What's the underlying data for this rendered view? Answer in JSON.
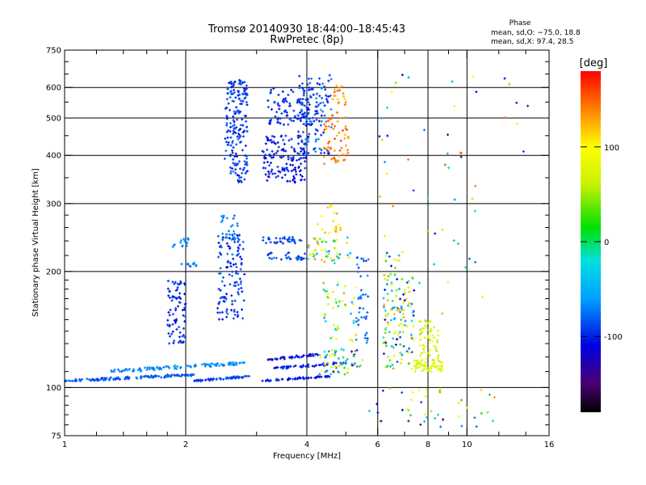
{
  "chart_data": {
    "type": "scatter",
    "title": "Tromsø 20140930 18:44:00–18:45:43",
    "subtitle": "RwPretec (8p)",
    "xlabel": "Frequency [MHz]",
    "ylabel": "Stationary phase Virtual Height [km]",
    "x_scale": "log",
    "y_scale": "log",
    "xlim": [
      1,
      16
    ],
    "ylim": [
      75,
      750
    ],
    "x_ticks": [
      1,
      2,
      4,
      6,
      8,
      10,
      16
    ],
    "x_tick_labels": [
      "1",
      "2",
      "4",
      "6",
      "8",
      "10",
      "16"
    ],
    "x_grid": [
      2,
      4,
      6,
      8,
      10
    ],
    "x_minor_ticks": [
      1.2,
      1.4,
      1.6,
      1.8,
      3,
      5,
      7,
      9,
      12,
      14
    ],
    "y_ticks": [
      75,
      100,
      200,
      300,
      400,
      500,
      600,
      750
    ],
    "y_tick_labels": [
      "75",
      "100",
      "200",
      "300",
      "400",
      "500",
      "600",
      "750"
    ],
    "y_grid": [
      100,
      200,
      300,
      400,
      500,
      600
    ],
    "y_minor_ticks": [
      80,
      85,
      90,
      95,
      110,
      120,
      130,
      140,
      150,
      160,
      170,
      180,
      190,
      220,
      240,
      260,
      280,
      350,
      450,
      550,
      650,
      700
    ],
    "grid": true,
    "legend_position": "top-right",
    "stats_title": "Phase",
    "stats_lines": [
      "mean, sd,O: −75.0, 18.8",
      "mean, sd,X:  97.4, 28.5"
    ],
    "colorbar": {
      "label": "[deg]",
      "range": [
        -180,
        180
      ],
      "tick_values": [
        100,
        0,
        -100
      ],
      "tick_labels": [
        "100",
        "0",
        "-100"
      ],
      "stops": [
        {
          "value": -180,
          "color": "#000000"
        },
        {
          "value": -150,
          "color": "#4a0072"
        },
        {
          "value": -110,
          "color": "#0000e0"
        },
        {
          "value": -60,
          "color": "#00a0ff"
        },
        {
          "value": -20,
          "color": "#00e0e0"
        },
        {
          "value": 15,
          "color": "#00e000"
        },
        {
          "value": 60,
          "color": "#c8f000"
        },
        {
          "value": 100,
          "color": "#ffff00"
        },
        {
          "value": 135,
          "color": "#ff9000"
        },
        {
          "value": 180,
          "color": "#ff0000"
        }
      ]
    },
    "clusters": [
      {
        "x": [
          1.0,
          2.1
        ],
        "y": [
          104,
          108
        ],
        "n": 140,
        "phase": [
          -95,
          -70
        ],
        "shape": "line"
      },
      {
        "x": [
          1.3,
          2.8
        ],
        "y": [
          110,
          116
        ],
        "n": 110,
        "phase": [
          -80,
          -55
        ],
        "shape": "line"
      },
      {
        "x": [
          2.1,
          2.9
        ],
        "y": [
          104,
          107
        ],
        "n": 60,
        "phase": [
          -100,
          -80
        ],
        "shape": "line"
      },
      {
        "x": [
          3.1,
          4.6
        ],
        "y": [
          104,
          107
        ],
        "n": 55,
        "phase": [
          -115,
          -90
        ],
        "shape": "line"
      },
      {
        "x": [
          3.2,
          4.3
        ],
        "y": [
          118,
          122
        ],
        "n": 45,
        "phase": [
          -125,
          -95
        ],
        "shape": "line"
      },
      {
        "x": [
          3.3,
          5.0
        ],
        "y": [
          112,
          116
        ],
        "n": 55,
        "phase": [
          -115,
          -85
        ],
        "shape": "line"
      },
      {
        "x": [
          4.3,
          5.5
        ],
        "y": [
          108,
          126
        ],
        "n": 60,
        "phase": [
          -120,
          140
        ],
        "shape": "box"
      },
      {
        "x": [
          1.8,
          2.0
        ],
        "y": [
          130,
          190
        ],
        "n": 80,
        "phase": [
          -110,
          -85
        ],
        "shape": "box"
      },
      {
        "x": [
          1.85,
          2.05
        ],
        "y": [
          230,
          245
        ],
        "n": 15,
        "phase": [
          -80,
          -60
        ],
        "shape": "box"
      },
      {
        "x": [
          1.95,
          2.15
        ],
        "y": [
          206,
          212
        ],
        "n": 12,
        "phase": [
          -80,
          -60
        ],
        "shape": "box"
      },
      {
        "x": [
          2.4,
          2.8
        ],
        "y": [
          150,
          250
        ],
        "n": 120,
        "phase": [
          -115,
          -75
        ],
        "shape": "box"
      },
      {
        "x": [
          2.45,
          2.7
        ],
        "y": [
          240,
          280
        ],
        "n": 30,
        "phase": [
          -80,
          -60
        ],
        "shape": "box"
      },
      {
        "x": [
          2.5,
          2.85
        ],
        "y": [
          340,
          630
        ],
        "n": 190,
        "phase": [
          -110,
          -75
        ],
        "shape": "box"
      },
      {
        "x": [
          3.1,
          3.9
        ],
        "y": [
          236,
          246
        ],
        "n": 35,
        "phase": [
          -100,
          -75
        ],
        "shape": "box"
      },
      {
        "x": [
          3.2,
          4.0
        ],
        "y": [
          214,
          224
        ],
        "n": 30,
        "phase": [
          -100,
          -75
        ],
        "shape": "box"
      },
      {
        "x": [
          4.0,
          5.2
        ],
        "y": [
          210,
          245
        ],
        "n": 50,
        "phase": [
          -80,
          150
        ],
        "shape": "box"
      },
      {
        "x": [
          3.1,
          4.0
        ],
        "y": [
          340,
          450
        ],
        "n": 140,
        "phase": [
          -120,
          -90
        ],
        "shape": "box"
      },
      {
        "x": [
          3.2,
          4.3
        ],
        "y": [
          480,
          600
        ],
        "n": 110,
        "phase": [
          -110,
          -85
        ],
        "shape": "box"
      },
      {
        "x": [
          3.8,
          4.6
        ],
        "y": [
          400,
          650
        ],
        "n": 110,
        "phase": [
          -110,
          -60
        ],
        "shape": "box"
      },
      {
        "x": [
          4.4,
          5.1
        ],
        "y": [
          380,
          500
        ],
        "n": 55,
        "phase": [
          120,
          165
        ],
        "shape": "box"
      },
      {
        "x": [
          4.6,
          5.0
        ],
        "y": [
          500,
          620
        ],
        "n": 25,
        "phase": [
          100,
          160
        ],
        "shape": "box"
      },
      {
        "x": [
          4.2,
          4.9
        ],
        "y": [
          250,
          300
        ],
        "n": 20,
        "phase": [
          90,
          140
        ],
        "shape": "box"
      },
      {
        "x": [
          4.4,
          5.3
        ],
        "y": [
          130,
          190
        ],
        "n": 45,
        "phase": [
          -60,
          120
        ],
        "shape": "box"
      },
      {
        "x": [
          5.3,
          5.7
        ],
        "y": [
          130,
          220
        ],
        "n": 40,
        "phase": [
          -100,
          -60
        ],
        "shape": "box"
      },
      {
        "x": [
          6.2,
          6.8
        ],
        "y": [
          110,
          230
        ],
        "n": 80,
        "phase": [
          -120,
          140
        ],
        "shape": "box"
      },
      {
        "x": [
          6.8,
          7.4
        ],
        "y": [
          110,
          200
        ],
        "n": 60,
        "phase": [
          -120,
          130
        ],
        "shape": "box"
      },
      {
        "x": [
          7.4,
          8.7
        ],
        "y": [
          110,
          118
        ],
        "n": 60,
        "phase": [
          60,
          90
        ],
        "shape": "box"
      },
      {
        "x": [
          7.6,
          8.5
        ],
        "y": [
          118,
          150
        ],
        "n": 55,
        "phase": [
          50,
          100
        ],
        "shape": "box"
      },
      {
        "x": [
          5.7,
          12.0
        ],
        "y": [
          78,
          100
        ],
        "n": 45,
        "phase": [
          -150,
          140
        ],
        "shape": "box"
      },
      {
        "x": [
          6.0,
          11.0
        ],
        "y": [
          150,
          400
        ],
        "n": 35,
        "phase": [
          -150,
          150
        ],
        "shape": "box"
      },
      {
        "x": [
          6.0,
          14.5
        ],
        "y": [
          400,
          660
        ],
        "n": 25,
        "phase": [
          -150,
          170
        ],
        "shape": "box"
      }
    ]
  }
}
